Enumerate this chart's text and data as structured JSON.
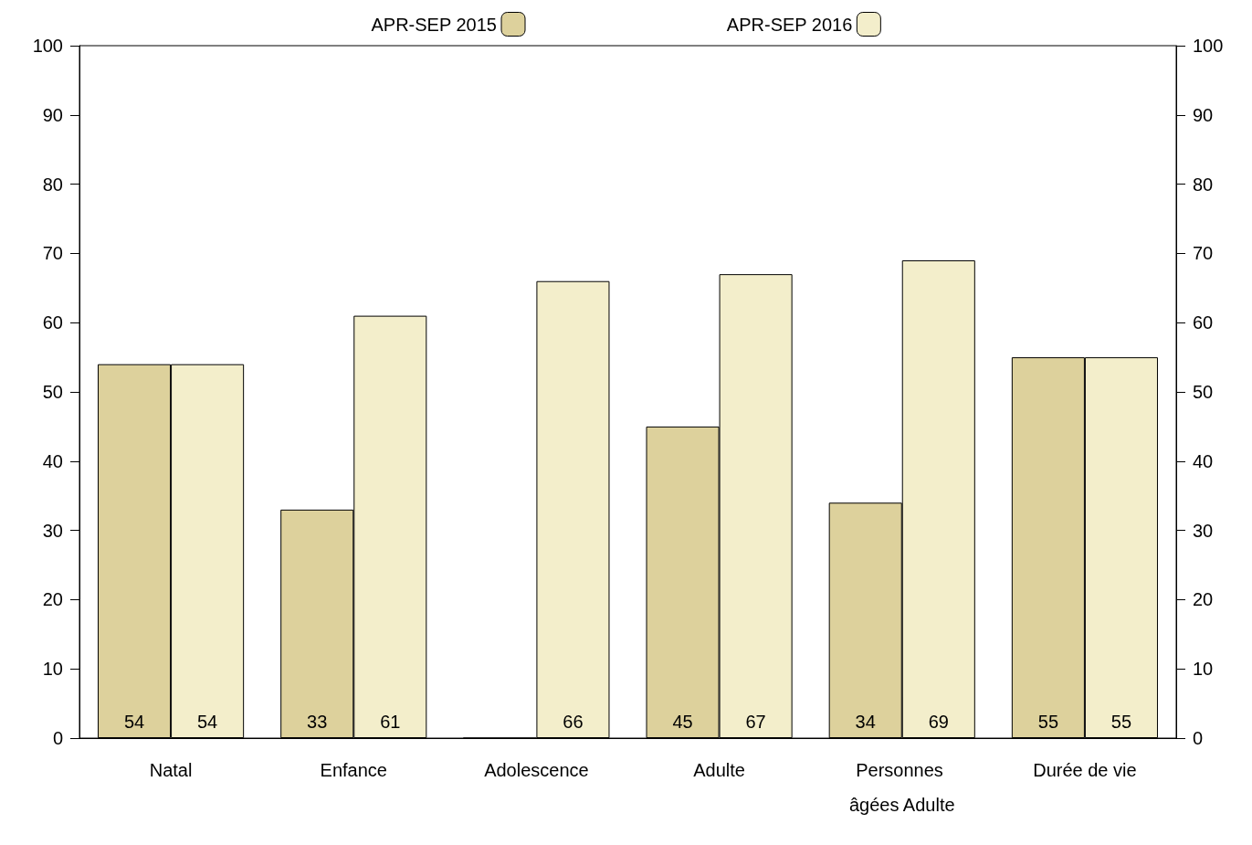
{
  "chart_data": {
    "type": "bar",
    "categories": [
      "Natal",
      "Enfance",
      "Adolescence",
      "Adulte",
      "Personnes âgées Adulte",
      "Durée de vie"
    ],
    "series": [
      {
        "name": "APR-SEP 2015",
        "color": "#ddd19c",
        "values": [
          54,
          33,
          0,
          45,
          34,
          55
        ],
        "value_labels": [
          "54",
          "33",
          null,
          "45",
          "34",
          "55"
        ]
      },
      {
        "name": "APR-SEP 2016",
        "color": "#f3eecb",
        "values": [
          54,
          61,
          66,
          67,
          69,
          55
        ],
        "value_labels": [
          "54",
          "61",
          "66",
          "67",
          "69",
          "55"
        ]
      }
    ],
    "ylim": [
      0,
      100
    ],
    "yticks": [
      0,
      10,
      20,
      30,
      40,
      50,
      60,
      70,
      80,
      90,
      100
    ],
    "y2lim": [
      0,
      100
    ],
    "y2ticks": [
      0,
      10,
      20,
      30,
      40,
      50,
      60,
      70,
      80,
      90,
      100
    ],
    "grid": false,
    "legend": "top"
  }
}
